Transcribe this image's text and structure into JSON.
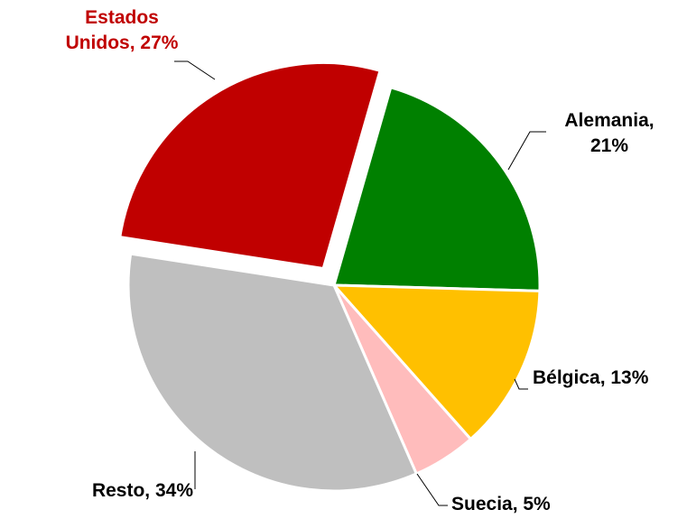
{
  "chart_data": {
    "type": "pie",
    "labels": [
      "Estados\nUnidos, 27%",
      "Alemania,\n21%",
      "Bélgica, 13%",
      "Suecia, 5%",
      "Resto, 34%"
    ],
    "values": [
      27,
      21,
      13,
      5,
      34
    ],
    "colors": [
      "#c00000",
      "#008000",
      "#ffc000",
      "#ffbcbc",
      "#bfbfbf"
    ],
    "label_colors": [
      "#c00000",
      "#000000",
      "#000000",
      "#000000",
      "#000000"
    ],
    "exploded": [
      true,
      false,
      false,
      false,
      false
    ]
  }
}
